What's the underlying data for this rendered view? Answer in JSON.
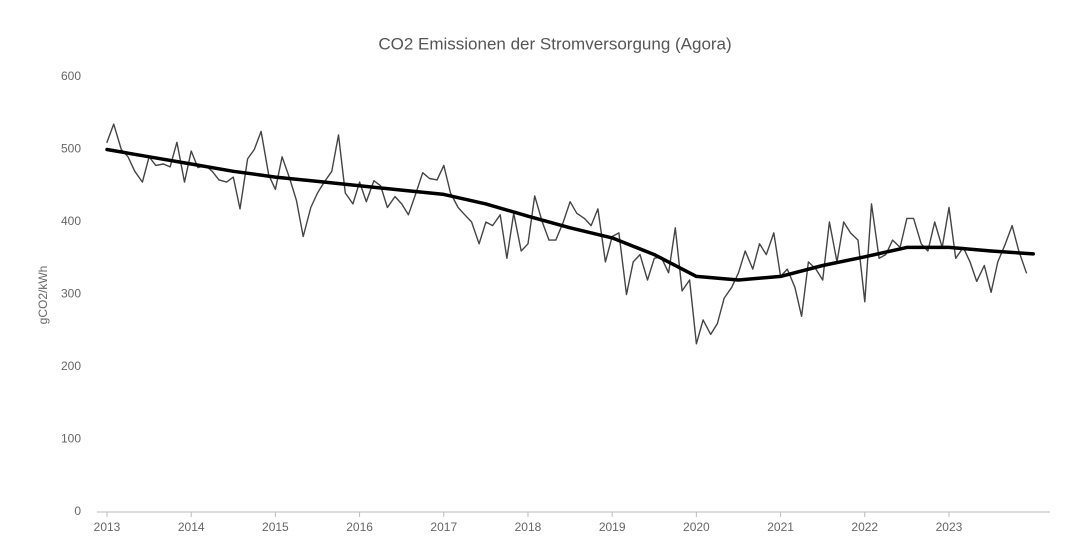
{
  "chart_data": {
    "type": "line",
    "title": "CO2  Emissionen der Stromversorgung (Agora)",
    "y_label": "gCO2/kWh",
    "x": [
      2013.0,
      2013.08,
      2013.17,
      2013.25,
      2013.33,
      2013.42,
      2013.5,
      2013.58,
      2013.67,
      2013.75,
      2013.83,
      2013.92,
      2014.0,
      2014.08,
      2014.17,
      2014.25,
      2014.33,
      2014.42,
      2014.5,
      2014.58,
      2014.67,
      2014.75,
      2014.83,
      2014.92,
      2015.0,
      2015.08,
      2015.17,
      2015.25,
      2015.33,
      2015.42,
      2015.5,
      2015.58,
      2015.67,
      2015.75,
      2015.83,
      2015.92,
      2016.0,
      2016.08,
      2016.17,
      2016.25,
      2016.33,
      2016.42,
      2016.5,
      2016.58,
      2016.67,
      2016.75,
      2016.83,
      2016.92,
      2017.0,
      2017.08,
      2017.17,
      2017.25,
      2017.33,
      2017.42,
      2017.5,
      2017.58,
      2017.67,
      2017.75,
      2017.83,
      2017.92,
      2018.0,
      2018.08,
      2018.17,
      2018.25,
      2018.33,
      2018.42,
      2018.5,
      2018.58,
      2018.67,
      2018.75,
      2018.83,
      2018.92,
      2019.0,
      2019.08,
      2019.17,
      2019.25,
      2019.33,
      2019.42,
      2019.5,
      2019.58,
      2019.67,
      2019.75,
      2019.83,
      2019.92,
      2020.0,
      2020.08,
      2020.17,
      2020.25,
      2020.33,
      2020.42,
      2020.5,
      2020.58,
      2020.67,
      2020.75,
      2020.83,
      2020.92,
      2021.0,
      2021.08,
      2021.17,
      2021.25,
      2021.33,
      2021.42,
      2021.5,
      2021.58,
      2021.67,
      2021.75,
      2021.83,
      2021.92,
      2022.0,
      2022.08,
      2022.17,
      2022.25,
      2022.33,
      2022.42,
      2022.5,
      2022.58,
      2022.67,
      2022.75,
      2022.83,
      2022.92,
      2023.0,
      2023.08,
      2023.17,
      2023.25,
      2023.33,
      2023.42,
      2023.5,
      2023.58,
      2023.67,
      2023.75,
      2023.83,
      2023.92
    ],
    "series": [
      {
        "color": "#444444",
        "width": 1.4,
        "values": [
          510,
          535,
          500,
          490,
          470,
          455,
          490,
          478,
          480,
          476,
          510,
          455,
          498,
          475,
          478,
          470,
          458,
          455,
          462,
          418,
          487,
          500,
          525,
          465,
          445,
          490,
          460,
          430,
          380,
          420,
          440,
          455,
          470,
          520,
          440,
          425,
          455,
          428,
          457,
          450,
          420,
          435,
          425,
          410,
          440,
          468,
          460,
          458,
          478,
          440,
          420,
          410,
          400,
          370,
          400,
          395,
          410,
          350,
          412,
          360,
          370,
          436,
          400,
          375,
          375,
          400,
          428,
          412,
          405,
          395,
          418,
          345,
          380,
          385,
          300,
          345,
          355,
          320,
          350,
          352,
          330,
          392,
          305,
          320,
          232,
          265,
          245,
          260,
          295,
          310,
          330,
          360,
          335,
          370,
          355,
          385,
          325,
          335,
          310,
          270,
          345,
          335,
          320,
          400,
          345,
          400,
          385,
          375,
          290,
          425,
          350,
          355,
          375,
          365,
          405,
          405,
          370,
          360,
          400,
          365,
          420,
          350,
          365,
          345,
          318,
          340,
          303,
          345,
          370,
          395,
          360,
          330
        ]
      },
      {
        "color": "#000000",
        "width": 3.5,
        "x": [
          2013.0,
          2013.5,
          2014.0,
          2014.5,
          2015.0,
          2015.5,
          2016.0,
          2016.5,
          2017.0,
          2017.5,
          2018.0,
          2018.5,
          2019.0,
          2019.5,
          2020.0,
          2020.5,
          2021.0,
          2021.5,
          2022.0,
          2022.5,
          2023.0,
          2023.5,
          2024.0
        ],
        "values": [
          500,
          490,
          480,
          470,
          462,
          456,
          450,
          444,
          438,
          425,
          408,
          392,
          378,
          355,
          325,
          320,
          325,
          340,
          352,
          365,
          365,
          360,
          356
        ]
      }
    ],
    "xlim": [
      2013,
      2024.2
    ],
    "xticks": [
      2013,
      2014,
      2015,
      2016,
      2017,
      2018,
      2019,
      2020,
      2021,
      2022,
      2023
    ],
    "ylim": [
      0,
      600
    ],
    "yticks": [
      0,
      100,
      200,
      300,
      400,
      500,
      600
    ],
    "grid": false
  }
}
